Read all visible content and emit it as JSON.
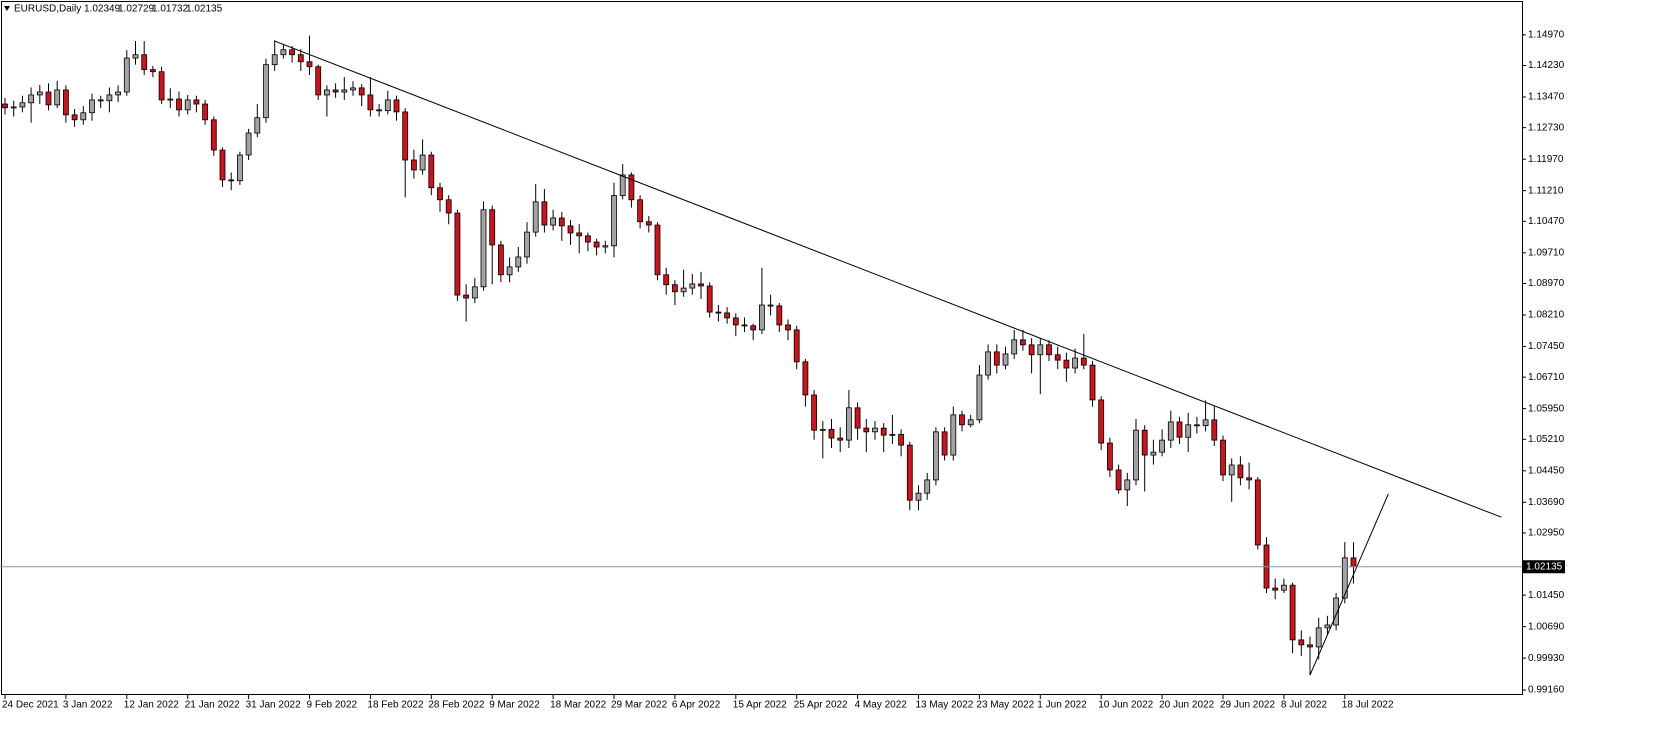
{
  "chart_data": {
    "type": "candlestick",
    "title": "EURUSD,Daily",
    "categories": [
      "24 Dec 2021",
      null,
      null,
      null,
      null,
      null,
      null,
      "3 Jan 2022",
      null,
      null,
      null,
      null,
      null,
      null,
      "12 Jan 2022",
      null,
      null,
      null,
      null,
      null,
      null,
      "21 Jan 2022",
      null,
      null,
      null,
      null,
      null,
      null,
      "31 Jan 2022",
      null,
      null,
      null,
      null,
      null,
      null,
      "9 Feb 2022",
      null,
      null,
      null,
      null,
      null,
      null,
      "18 Feb 2022",
      null,
      null,
      null,
      null,
      null,
      null,
      "28 Feb 2022",
      null,
      null,
      null,
      null,
      null,
      null,
      "9 Mar 2022",
      null,
      null,
      null,
      null,
      null,
      null,
      "18 Mar 2022",
      null,
      null,
      null,
      null,
      null,
      null,
      "29 Mar 2022",
      null,
      null,
      null,
      null,
      null,
      null,
      "6 Apr 2022",
      null,
      null,
      null,
      null,
      null,
      null,
      "15 Apr 2022",
      null,
      null,
      null,
      null,
      null,
      null,
      "25 Apr 2022",
      null,
      null,
      null,
      null,
      null,
      null,
      "4 May 2022",
      null,
      null,
      null,
      null,
      null,
      null,
      "13 May 2022",
      null,
      null,
      null,
      null,
      null,
      null,
      "23 May 2022",
      null,
      null,
      null,
      null,
      null,
      null,
      "1 Jun 2022",
      null,
      null,
      null,
      null,
      null,
      null,
      "10 Jun 2022",
      null,
      null,
      null,
      null,
      null,
      null,
      "20 Jun 2022",
      null,
      null,
      null,
      null,
      null,
      null,
      "29 Jun 2022",
      null,
      null,
      null,
      null,
      null,
      null,
      "8 Jul 2022",
      null,
      null,
      null,
      null,
      null,
      null,
      "18 Jul 2022",
      null
    ],
    "open": [
      1.133,
      1.1321,
      1.1323,
      1.1333,
      1.1352,
      1.1359,
      1.1328,
      1.1364,
      1.1304,
      1.1292,
      1.1309,
      1.134,
      1.1338,
      1.1352,
      1.1359,
      1.1441,
      1.1449,
      1.1413,
      1.1408,
      1.134,
      1.1342,
      1.1316,
      1.134,
      1.133,
      1.1292,
      1.1219,
      1.1147,
      1.1145,
      1.1207,
      1.126,
      1.1297,
      1.1425,
      1.1449,
      1.1461,
      1.1449,
      1.1432,
      1.142,
      1.1352,
      1.1364,
      1.1359,
      1.1364,
      1.1369,
      1.1352,
      1.1316,
      1.1314,
      1.134,
      1.1311,
      1.1195,
      1.1171,
      1.1207,
      1.1128,
      1.1099,
      1.1067,
      1.0869,
      1.0862,
      1.0889,
      1.1075,
      1.099,
      1.0918,
      1.0937,
      1.0961,
      1.1021,
      1.1094,
      1.1038,
      1.1055,
      1.1036,
      1.1019,
      1.1012,
      1.0997,
      1.0985,
      1.0988,
      1.1109,
      1.1159,
      1.1099,
      1.1046,
      1.1038,
      1.0918,
      1.0894,
      1.0877,
      1.0886,
      1.0896,
      1.0891,
      1.0828,
      1.0826,
      1.0814,
      1.0797,
      1.0795,
      1.0785,
      1.0845,
      1.0843,
      1.0797,
      1.0785,
      1.0708,
      1.0628,
      1.0543,
      1.0545,
      1.0524,
      1.0519,
      1.0597,
      1.0548,
      1.0539,
      1.0548,
      1.0531,
      1.0533,
      1.0507,
      1.0374,
      1.0391,
      1.0423,
      1.0539,
      1.0483,
      1.058,
      1.0556,
      1.0568,
      1.0676,
      1.0732,
      1.07,
      1.0727,
      1.0761,
      1.0749,
      1.0725,
      1.0749,
      1.0725,
      1.0712,
      1.0693,
      1.0717,
      1.07,
      1.0616,
      1.0512,
      1.0447,
      1.0399,
      1.0423,
      1.0543,
      1.0483,
      1.049,
      1.0519,
      1.0563,
      1.0526,
      1.0556,
      1.0554,
      1.0568,
      1.0519,
      1.0435,
      1.0459,
      1.0428,
      1.0423,
      1.0266,
      1.0162,
      1.0157,
      1.0169,
      1.0037,
      1.0025,
      1.002,
      1.0066,
      1.0073,
      1.0138,
      1.02349
    ],
    "high": [
      1.1345,
      1.1338,
      1.135,
      1.137,
      1.1376,
      1.138,
      1.1386,
      1.1375,
      1.1318,
      1.1325,
      1.1355,
      1.135,
      1.137,
      1.1375,
      1.146,
      1.1482,
      1.1482,
      1.1422,
      1.142,
      1.1368,
      1.136,
      1.1352,
      1.135,
      1.134,
      1.13,
      1.1225,
      1.1165,
      1.1215,
      1.127,
      1.133,
      1.144,
      1.1484,
      1.1475,
      1.147,
      1.1462,
      1.1495,
      1.1425,
      1.1375,
      1.138,
      1.1395,
      1.1385,
      1.1378,
      1.1395,
      1.133,
      1.1362,
      1.135,
      1.132,
      1.122,
      1.1245,
      1.1215,
      1.114,
      1.111,
      1.1075,
      1.0895,
      1.091,
      1.1095,
      1.1085,
      1.1,
      1.096,
      1.0985,
      1.1045,
      1.1137,
      1.1125,
      1.1075,
      1.107,
      1.105,
      1.104,
      1.102,
      1.1005,
      1.1,
      1.114,
      1.1185,
      1.1165,
      1.111,
      1.106,
      1.1045,
      1.0935,
      1.0905,
      1.093,
      1.092,
      1.0925,
      1.09,
      1.0845,
      1.084,
      1.0825,
      1.0815,
      1.08,
      1.0935,
      1.087,
      1.085,
      1.081,
      1.0795,
      1.0715,
      1.064,
      1.0565,
      1.057,
      1.055,
      1.064,
      1.061,
      1.057,
      1.0565,
      1.056,
      1.058,
      1.0545,
      1.0515,
      1.041,
      1.044,
      1.055,
      1.055,
      1.06,
      1.059,
      1.058,
      1.07,
      1.075,
      1.075,
      1.0745,
      1.0785,
      1.0785,
      1.0765,
      1.0765,
      1.076,
      1.0745,
      1.073,
      1.074,
      1.0775,
      1.071,
      1.0625,
      1.0525,
      1.046,
      1.044,
      1.057,
      1.0555,
      1.052,
      1.0545,
      1.059,
      1.0575,
      1.0585,
      1.0575,
      1.0615,
      1.06,
      1.053,
      1.0475,
      1.048,
      1.0465,
      1.043,
      1.0285,
      1.0185,
      1.0185,
      1.0175,
      1.006,
      1.0045,
      1.009,
      1.0095,
      1.015,
      1.0273,
      1.02729
    ],
    "low": [
      1.1305,
      1.13,
      1.131,
      1.1285,
      1.133,
      1.1315,
      1.132,
      1.1285,
      1.1275,
      1.128,
      1.129,
      1.132,
      1.131,
      1.1335,
      1.135,
      1.1425,
      1.14,
      1.1395,
      1.133,
      1.132,
      1.13,
      1.1305,
      1.131,
      1.128,
      1.1205,
      1.113,
      1.1122,
      1.1135,
      1.1195,
      1.125,
      1.1285,
      1.141,
      1.144,
      1.143,
      1.141,
      1.14,
      1.134,
      1.13,
      1.1345,
      1.134,
      1.135,
      1.1325,
      1.13,
      1.13,
      1.1305,
      1.129,
      1.1105,
      1.115,
      1.116,
      1.111,
      1.107,
      1.104,
      1.0855,
      1.0805,
      1.085,
      1.088,
      1.0895,
      1.09,
      1.09,
      1.0925,
      1.0945,
      1.101,
      1.102,
      1.1025,
      1.1,
      1.099,
      1.097,
      1.0975,
      1.0965,
      1.097,
      1.096,
      1.11,
      1.108,
      1.103,
      1.102,
      1.0905,
      1.087,
      1.0845,
      1.0865,
      1.087,
      1.086,
      1.0815,
      1.0805,
      1.08,
      1.077,
      1.078,
      1.076,
      1.0775,
      1.082,
      1.078,
      1.076,
      1.069,
      1.06,
      1.052,
      1.0475,
      1.05,
      1.049,
      1.05,
      1.052,
      1.049,
      1.052,
      1.049,
      1.051,
      1.048,
      1.035,
      1.035,
      1.0375,
      1.041,
      1.047,
      1.047,
      1.054,
      1.055,
      1.056,
      1.0665,
      1.068,
      1.069,
      1.0715,
      1.0735,
      1.068,
      1.063,
      1.071,
      1.069,
      1.066,
      1.068,
      1.069,
      1.06,
      1.0495,
      1.043,
      1.039,
      1.036,
      1.041,
      1.0395,
      1.046,
      1.048,
      1.05,
      1.051,
      1.049,
      1.0535,
      1.054,
      1.0505,
      1.042,
      1.037,
      1.041,
      1.04,
      1.0255,
      1.015,
      1.0135,
      1.015,
      1.0005,
      0.9998,
      0.9952,
      0.999,
      1.005,
      1.006,
      1.0125,
      1.01732
    ],
    "close": [
      1.1321,
      1.1323,
      1.1333,
      1.1352,
      1.1359,
      1.1328,
      1.1364,
      1.1304,
      1.1292,
      1.1309,
      1.134,
      1.1338,
      1.1352,
      1.1359,
      1.1441,
      1.1449,
      1.1413,
      1.1408,
      1.134,
      1.1342,
      1.1316,
      1.134,
      1.133,
      1.1292,
      1.1219,
      1.1147,
      1.1145,
      1.1207,
      1.126,
      1.1297,
      1.1425,
      1.1449,
      1.1461,
      1.1449,
      1.1432,
      1.142,
      1.1352,
      1.1364,
      1.1359,
      1.1364,
      1.1369,
      1.1352,
      1.1316,
      1.1314,
      1.134,
      1.1311,
      1.1195,
      1.1171,
      1.1207,
      1.1128,
      1.1099,
      1.1067,
      1.0869,
      1.0862,
      1.0889,
      1.1075,
      1.099,
      1.0918,
      1.0937,
      1.0961,
      1.1021,
      1.1094,
      1.1038,
      1.1055,
      1.1036,
      1.1019,
      1.1012,
      1.0997,
      1.0985,
      1.0988,
      1.1109,
      1.1159,
      1.1099,
      1.1046,
      1.1038,
      1.0918,
      1.0894,
      1.0877,
      1.0886,
      1.0896,
      1.0891,
      1.0828,
      1.0826,
      1.0814,
      1.0797,
      1.0795,
      1.0785,
      1.0845,
      1.0843,
      1.0797,
      1.0785,
      1.0708,
      1.0628,
      1.0543,
      1.0545,
      1.0524,
      1.0519,
      1.0597,
      1.0548,
      1.0539,
      1.0548,
      1.0531,
      1.0533,
      1.0507,
      1.0374,
      1.0391,
      1.0423,
      1.0539,
      1.0483,
      1.058,
      1.0556,
      1.0568,
      1.0676,
      1.0732,
      1.07,
      1.0727,
      1.0761,
      1.0749,
      1.0725,
      1.0749,
      1.0725,
      1.0712,
      1.0693,
      1.0717,
      1.07,
      1.0616,
      1.0512,
      1.0447,
      1.0399,
      1.0423,
      1.0543,
      1.0483,
      1.049,
      1.0519,
      1.0563,
      1.0526,
      1.0556,
      1.0554,
      1.0568,
      1.0519,
      1.0435,
      1.0459,
      1.0428,
      1.0423,
      1.0266,
      1.0162,
      1.0157,
      1.0169,
      1.0037,
      1.0025,
      1.002,
      1.0066,
      1.0073,
      1.0138,
      1.0235,
      1.02135
    ],
    "ylim": [
      0.9904,
      1.1569
    ],
    "yticks": [
      {
        "value": 1.1497,
        "label": "1.14970"
      },
      {
        "value": 1.1423,
        "label": "1.14230"
      },
      {
        "value": 1.1347,
        "label": "1.13470"
      },
      {
        "value": 1.1273,
        "label": "1.12730"
      },
      {
        "value": 1.1197,
        "label": "1.11970"
      },
      {
        "value": 1.1121,
        "label": "1.11210"
      },
      {
        "value": 1.1047,
        "label": "1.10470"
      },
      {
        "value": 1.0971,
        "label": "1.09710"
      },
      {
        "value": 1.0897,
        "label": "1.08970"
      },
      {
        "value": 1.0821,
        "label": "1.08210"
      },
      {
        "value": 1.0745,
        "label": "1.07450"
      },
      {
        "value": 1.0671,
        "label": "1.06710"
      },
      {
        "value": 1.0595,
        "label": "1.05950"
      },
      {
        "value": 1.0521,
        "label": "1.05210"
      },
      {
        "value": 1.0445,
        "label": "1.04450"
      },
      {
        "value": 1.0369,
        "label": "1.03690"
      },
      {
        "value": 1.0295,
        "label": "1.02950"
      },
      {
        "value": 1.0145,
        "label": "1.01450"
      },
      {
        "value": 1.0069,
        "label": "1.00690"
      },
      {
        "value": 0.9993,
        "label": "0.99930"
      },
      {
        "value": 0.9916,
        "label": "0.99160"
      }
    ],
    "grid": false,
    "up_color": "#a3a3a3",
    "down_color": "#d0121b",
    "price_line_color": "#7f9bb8",
    "trendlines": [
      {
        "x": [
          31,
          172
        ],
        "y": [
          1.1482,
          1.0333
        ]
      },
      {
        "x": [
          150,
          159
        ],
        "y": [
          0.9952,
          1.0389
        ]
      }
    ]
  }
}
